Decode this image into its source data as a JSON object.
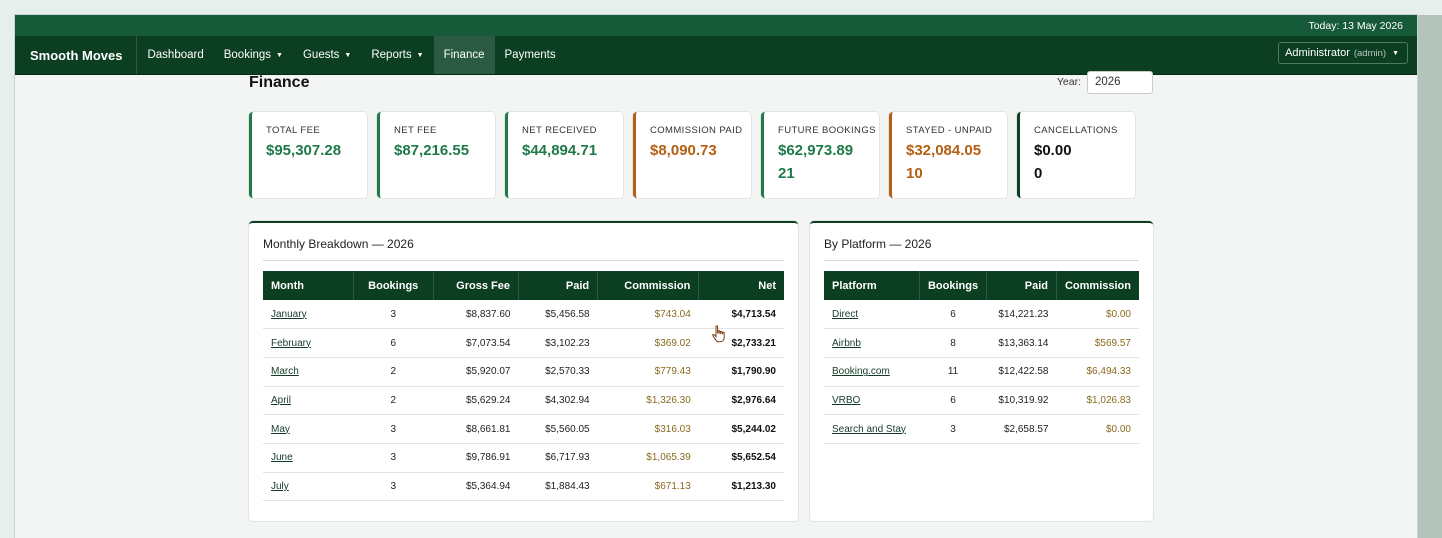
{
  "topbar": {
    "today": "Today: 13 May 2026"
  },
  "nav": {
    "brand": "Smooth Moves",
    "items": [
      {
        "label": "Dashboard"
      },
      {
        "label": "Bookings"
      },
      {
        "label": "Guests"
      },
      {
        "label": "Reports"
      },
      {
        "label": "Finance"
      },
      {
        "label": "Payments"
      }
    ],
    "active": "Finance",
    "user": {
      "name": "Administrator",
      "role": "(admin)"
    }
  },
  "page": {
    "title": "Finance",
    "year_label": "Year:",
    "year_value": "2026"
  },
  "cards": [
    {
      "label": "Total Fee",
      "value": "$95,307.28",
      "value2": ""
    },
    {
      "label": "Net Fee",
      "value": "$87,216.55",
      "value2": ""
    },
    {
      "label": "Net Received",
      "value": "$44,894.71",
      "value2": ""
    },
    {
      "label": "Commission Paid",
      "value": "$8,090.73",
      "value2": ""
    },
    {
      "label": "Future Bookings",
      "value": "$62,973.89",
      "value2": "21"
    },
    {
      "label": "Stayed - Unpaid",
      "value": "$32,084.05",
      "value2": "10"
    },
    {
      "label": "Cancellations",
      "value": "$0.00",
      "value2": "0"
    }
  ],
  "monthly": {
    "title": "Monthly Breakdown — 2026",
    "headers": [
      "Month",
      "Bookings",
      "Gross Fee",
      "Paid",
      "Commission",
      "Net"
    ],
    "rows": [
      [
        "January",
        "3",
        "$8,837.60",
        "$5,456.58",
        "$743.04",
        "$4,713.54"
      ],
      [
        "February",
        "6",
        "$7,073.54",
        "$3,102.23",
        "$369.02",
        "$2,733.21"
      ],
      [
        "March",
        "2",
        "$5,920.07",
        "$2,570.33",
        "$779.43",
        "$1,790.90"
      ],
      [
        "April",
        "2",
        "$5,629.24",
        "$4,302.94",
        "$1,326.30",
        "$2,976.64"
      ],
      [
        "May",
        "3",
        "$8,661.81",
        "$5,560.05",
        "$316.03",
        "$5,244.02"
      ],
      [
        "June",
        "3",
        "$9,786.91",
        "$6,717.93",
        "$1,065.39",
        "$5,652.54"
      ],
      [
        "July",
        "3",
        "$5,364.94",
        "$1,884.43",
        "$671.13",
        "$1,213.30"
      ]
    ]
  },
  "platform": {
    "title": "By Platform — 2026",
    "headers": [
      "Platform",
      "Bookings",
      "Paid",
      "Commission"
    ],
    "rows": [
      [
        "Direct",
        "6",
        "$14,221.23",
        "$0.00"
      ],
      [
        "Airbnb",
        "8",
        "$13,363.14",
        "$569.57"
      ],
      [
        "Booking.com",
        "11",
        "$12,422.58",
        "$6,494.33"
      ],
      [
        "VRBO",
        "6",
        "$10,319.92",
        "$1,026.83"
      ],
      [
        "Search and Stay",
        "3",
        "$2,658.57",
        "$0.00"
      ]
    ]
  }
}
